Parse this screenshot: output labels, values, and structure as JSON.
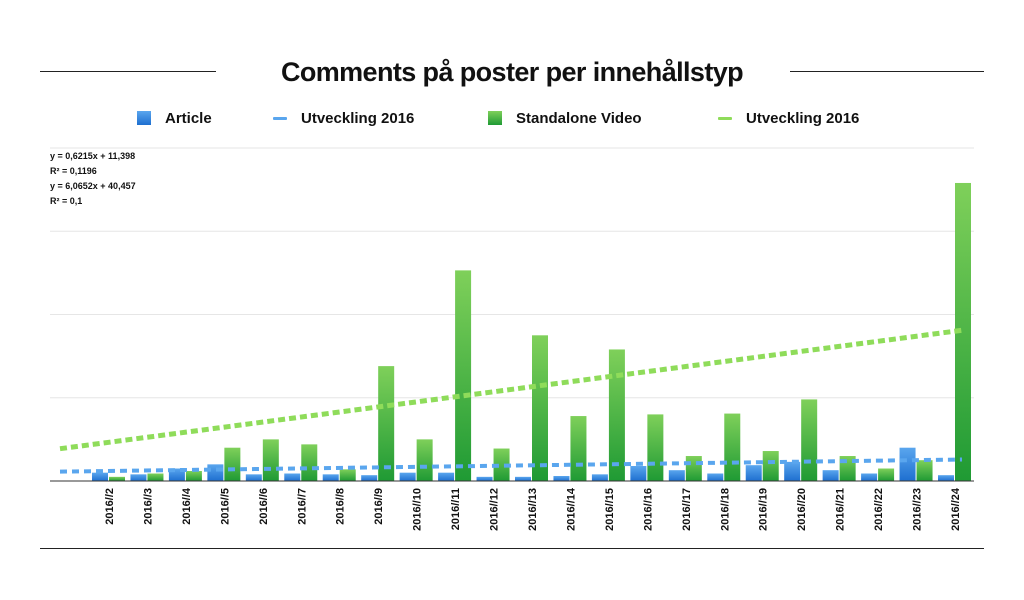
{
  "chart_data": {
    "type": "bar",
    "title": "Comments på poster per innehållstyp",
    "xlabel": "",
    "ylabel": "",
    "categories": [
      "2016//2",
      "2016//3",
      "2016//4",
      "2016//5",
      "2016//6",
      "2016//7",
      "2016//8",
      "2016//9",
      "2016//10",
      "2016//11",
      "2016//12",
      "2016//13",
      "2016//14",
      "2016//15",
      "2016//16",
      "2016//17",
      "2016//18",
      "2016//19",
      "2016//20",
      "2016//21",
      "2016//22",
      "2016//23",
      "2016//24"
    ],
    "series": [
      {
        "name": "Article",
        "color": "#2f7fdc",
        "values": [
          10,
          8,
          15,
          20,
          8,
          9,
          8,
          7,
          10,
          10,
          5,
          5,
          6,
          8,
          18,
          13,
          9,
          19,
          23,
          13,
          9,
          40,
          7
        ]
      },
      {
        "name": "Standalone Video",
        "color": "#3aab3f",
        "values": [
          5,
          9,
          12,
          40,
          50,
          44,
          14,
          138,
          50,
          253,
          39,
          175,
          78,
          158,
          80,
          30,
          81,
          36,
          98,
          30,
          15,
          25,
          358
        ]
      }
    ],
    "trendlines": [
      {
        "name": "Utveckling 2016",
        "color": "#5aa6ee",
        "slope": 0.6215,
        "intercept": 11.398
      },
      {
        "name": "Utveckling 2016",
        "color": "#8fdc5a",
        "slope": 6.0652,
        "intercept": 40.457
      }
    ],
    "equations": [
      "y = 0,6215x + 11,398",
      "R² = 0,1196",
      "y = 6,0652x + 40,457",
      "R² = 0,1"
    ],
    "ylim": [
      0,
      400
    ],
    "grid": true,
    "legend_position": "top"
  }
}
